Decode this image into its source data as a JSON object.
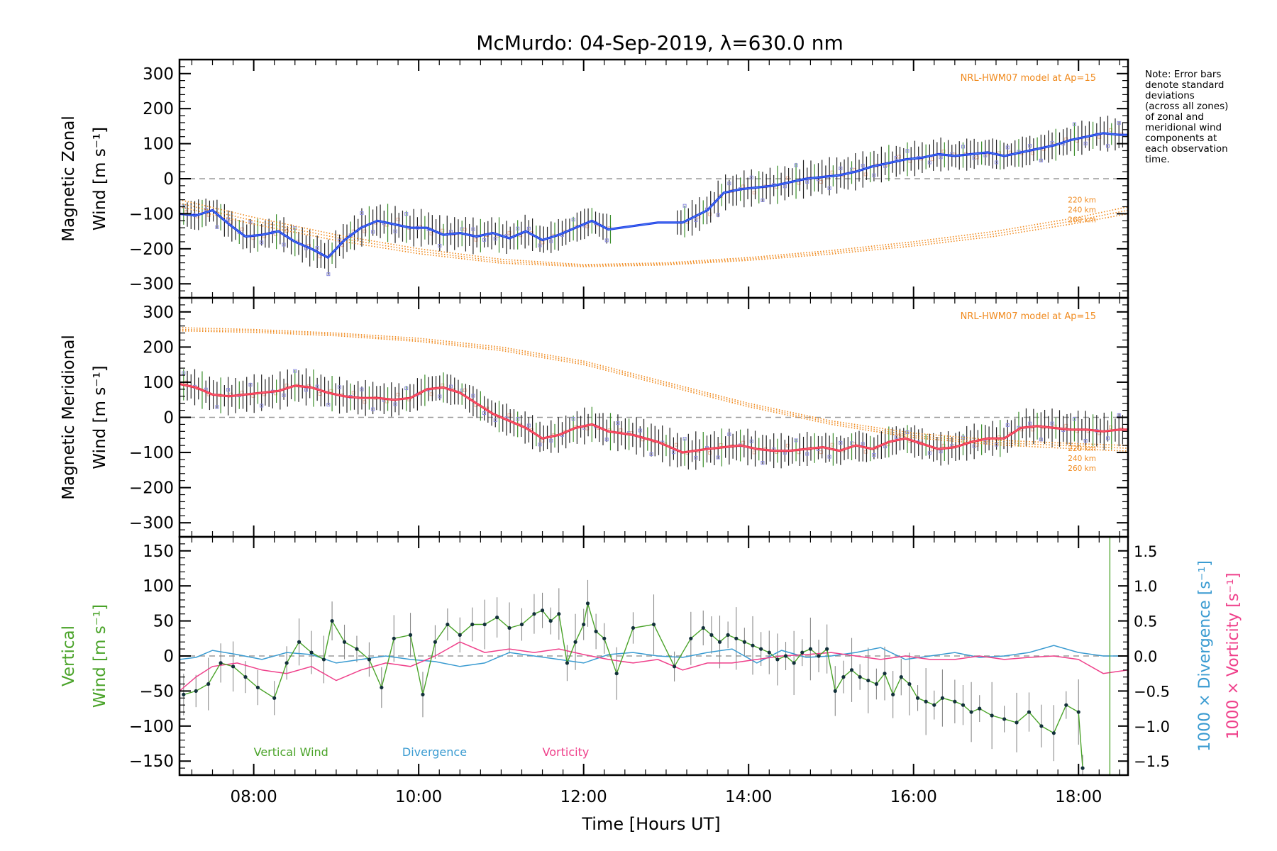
{
  "title": "McMurdo: 04-Sep-2019, λ=630.0 nm",
  "note_lines": [
    "Note: Error bars",
    "denote standard",
    "deviations",
    "(across all zones)",
    "of zonal and",
    "meridional wind",
    "components at",
    "each observation",
    "time."
  ],
  "x_axis": {
    "label": "Time [Hours UT]",
    "range": [
      7.1,
      18.6
    ],
    "ticks": [
      8,
      10,
      12,
      14,
      16,
      18
    ],
    "tick_labels": [
      "08:00",
      "10:00",
      "12:00",
      "14:00",
      "16:00",
      "18:00"
    ]
  },
  "colors": {
    "zonal": "#1f36e8",
    "meridional": "#f0304a",
    "model": "#f08a1e",
    "vertical": "#4aa329",
    "divergence": "#3a9bd1",
    "vorticity": "#ef3f8a",
    "dashed": "#9a9a9a",
    "zone_marker": "#8c8ce0",
    "error_bar": "#222222"
  },
  "chart_data": [
    {
      "type": "line",
      "panel": "zonal",
      "ylabel_line1": "Magnetic Zonal",
      "ylabel_line2": "Wind [m s⁻¹]",
      "ylim": [
        -340,
        340
      ],
      "yticks": [
        -300,
        -200,
        -100,
        0,
        100,
        200,
        300
      ],
      "model_label": "NRL-HWM07 model at Ap=15",
      "model_alt_labels": [
        "220 km",
        "240 km",
        "260 km"
      ],
      "series": [
        {
          "name": "Zonal wind",
          "x": [
            7.1,
            7.3,
            7.5,
            7.7,
            7.9,
            8.1,
            8.3,
            8.5,
            8.7,
            8.9,
            9.1,
            9.3,
            9.5,
            9.7,
            9.9,
            10.1,
            10.3,
            10.5,
            10.7,
            10.9,
            11.1,
            11.3,
            11.5,
            11.7,
            11.9,
            12.1,
            12.3,
            12.6,
            12.9,
            13.2,
            13.5,
            13.7,
            13.9,
            14.1,
            14.3,
            14.5,
            14.7,
            14.9,
            15.1,
            15.3,
            15.5,
            15.7,
            15.9,
            16.1,
            16.3,
            16.5,
            16.7,
            16.9,
            17.1,
            17.3,
            17.5,
            17.7,
            17.9,
            18.1,
            18.3,
            18.5,
            18.6
          ],
          "y": [
            -100,
            -105,
            -90,
            -130,
            -165,
            -160,
            -150,
            -180,
            -200,
            -225,
            -175,
            -140,
            -120,
            -130,
            -140,
            -140,
            -160,
            -155,
            -165,
            -155,
            -170,
            -150,
            -175,
            -160,
            -140,
            -120,
            -145,
            -135,
            -125,
            -125,
            -90,
            -40,
            -30,
            -25,
            -20,
            -10,
            0,
            5,
            10,
            20,
            35,
            45,
            55,
            60,
            70,
            65,
            70,
            75,
            65,
            75,
            85,
            95,
            110,
            120,
            130,
            125,
            125
          ]
        },
        {
          "name": "Model 220 km",
          "x": [
            7.1,
            8,
            9,
            10,
            11,
            12,
            13,
            14,
            15,
            16,
            17,
            18,
            18.6
          ],
          "y": [
            -60,
            -110,
            -160,
            -200,
            -230,
            -245,
            -240,
            -225,
            -205,
            -180,
            -150,
            -110,
            -80
          ]
        },
        {
          "name": "Model 240 km",
          "x": [
            7.1,
            8,
            9,
            10,
            11,
            12,
            13,
            14,
            15,
            16,
            17,
            18,
            18.6
          ],
          "y": [
            -70,
            -120,
            -168,
            -207,
            -236,
            -248,
            -243,
            -229,
            -210,
            -186,
            -157,
            -118,
            -90
          ]
        },
        {
          "name": "Model 260 km",
          "x": [
            7.1,
            8,
            9,
            10,
            11,
            12,
            13,
            14,
            15,
            16,
            17,
            18,
            18.6
          ],
          "y": [
            -80,
            -130,
            -176,
            -214,
            -241,
            -251,
            -246,
            -233,
            -215,
            -192,
            -164,
            -126,
            -100
          ]
        }
      ]
    },
    {
      "type": "line",
      "panel": "meridional",
      "ylabel_line1": "Magnetic Meridional",
      "ylabel_line2": "Wind [m s⁻¹]",
      "ylim": [
        -340,
        340
      ],
      "yticks": [
        -300,
        -200,
        -100,
        0,
        100,
        200,
        300
      ],
      "model_label": "NRL-HWM07 model at Ap=15",
      "model_alt_labels": [
        "220 km",
        "240 km",
        "260 km"
      ],
      "series": [
        {
          "name": "Meridional wind",
          "x": [
            7.1,
            7.3,
            7.5,
            7.7,
            7.9,
            8.1,
            8.3,
            8.5,
            8.7,
            8.9,
            9.1,
            9.3,
            9.5,
            9.7,
            9.9,
            10.1,
            10.3,
            10.5,
            10.7,
            10.9,
            11.1,
            11.3,
            11.5,
            11.7,
            11.9,
            12.1,
            12.3,
            12.6,
            12.9,
            13.2,
            13.5,
            13.7,
            13.9,
            14.1,
            14.3,
            14.5,
            14.7,
            14.9,
            15.1,
            15.3,
            15.5,
            15.7,
            15.9,
            16.1,
            16.3,
            16.5,
            16.7,
            16.9,
            17.1,
            17.3,
            17.5,
            17.7,
            17.9,
            18.1,
            18.3,
            18.5,
            18.6
          ],
          "y": [
            95,
            85,
            65,
            60,
            65,
            70,
            75,
            90,
            85,
            70,
            60,
            55,
            55,
            50,
            55,
            80,
            85,
            70,
            40,
            10,
            -10,
            -30,
            -60,
            -50,
            -30,
            -20,
            -40,
            -50,
            -70,
            -100,
            -90,
            -85,
            -80,
            -90,
            -95,
            -95,
            -90,
            -85,
            -95,
            -80,
            -90,
            -70,
            -60,
            -75,
            -90,
            -85,
            -70,
            -60,
            -60,
            -30,
            -25,
            -30,
            -35,
            -35,
            -40,
            -35,
            -35
          ]
        },
        {
          "name": "Model 220 km",
          "x": [
            7.1,
            8,
            9,
            10,
            11,
            12,
            13,
            14,
            15,
            16,
            17,
            18,
            18.6
          ],
          "y": [
            255,
            250,
            240,
            225,
            200,
            160,
            100,
            40,
            -10,
            -45,
            -65,
            -75,
            -80
          ]
        },
        {
          "name": "Model 240 km",
          "x": [
            7.1,
            8,
            9,
            10,
            11,
            12,
            13,
            14,
            15,
            16,
            17,
            18,
            18.6
          ],
          "y": [
            250,
            246,
            236,
            220,
            195,
            155,
            95,
            35,
            -15,
            -52,
            -72,
            -82,
            -88
          ]
        },
        {
          "name": "Model 260 km",
          "x": [
            7.1,
            8,
            9,
            10,
            11,
            12,
            13,
            14,
            15,
            16,
            17,
            18,
            18.6
          ],
          "y": [
            246,
            242,
            232,
            216,
            190,
            150,
            90,
            30,
            -20,
            -58,
            -78,
            -90,
            -96
          ]
        }
      ]
    },
    {
      "type": "line",
      "panel": "vertical",
      "ylabel_line1": "Vertical",
      "ylabel_line2": "Wind [m s⁻¹]",
      "right_label_divergence": "1000 × Divergence [s⁻¹]",
      "right_label_vorticity": "1000 × Vorticity [s⁻¹]",
      "ylim": [
        -170,
        170
      ],
      "yticks": [
        -150,
        -100,
        -50,
        0,
        50,
        100,
        150
      ],
      "y2lim": [
        -1.7,
        1.7
      ],
      "y2ticks": [
        -1.5,
        -1.0,
        -0.5,
        0.0,
        0.5,
        1.0,
        1.5
      ],
      "y2tick_labels": [
        "−1.5",
        "−1.0",
        "−0.5",
        "0.0",
        "0.5",
        "1.0",
        "1.5"
      ],
      "legend": [
        "Vertical Wind",
        "Divergence",
        "Vorticity"
      ],
      "series": [
        {
          "name": "Vertical Wind",
          "x": [
            7.15,
            7.3,
            7.45,
            7.6,
            7.75,
            7.9,
            8.05,
            8.25,
            8.4,
            8.55,
            8.7,
            8.85,
            8.95,
            9.1,
            9.25,
            9.4,
            9.55,
            9.7,
            9.9,
            10.05,
            10.2,
            10.35,
            10.5,
            10.65,
            10.8,
            10.95,
            11.1,
            11.25,
            11.4,
            11.5,
            11.6,
            11.7,
            11.8,
            11.9,
            12.0,
            12.05,
            12.15,
            12.25,
            12.4,
            12.6,
            12.85,
            13.1,
            13.3,
            13.45,
            13.55,
            13.65,
            13.75,
            13.85,
            13.95,
            14.05,
            14.15,
            14.25,
            14.35,
            14.45,
            14.55,
            14.65,
            14.75,
            14.85,
            14.95,
            15.05,
            15.15,
            15.25,
            15.35,
            15.45,
            15.55,
            15.65,
            15.75,
            15.85,
            15.95,
            16.05,
            16.15,
            16.25,
            16.35,
            16.5,
            16.6,
            16.7,
            16.8,
            16.95,
            17.1,
            17.25,
            17.4,
            17.55,
            17.7,
            17.85,
            18.0,
            18.05
          ],
          "y": [
            -55,
            -50,
            -40,
            -10,
            -15,
            -30,
            -45,
            -60,
            -10,
            20,
            5,
            -5,
            50,
            20,
            10,
            -5,
            -45,
            25,
            30,
            -55,
            20,
            45,
            30,
            45,
            45,
            55,
            40,
            45,
            60,
            65,
            50,
            60,
            -10,
            20,
            45,
            75,
            35,
            25,
            -25,
            40,
            45,
            -15,
            25,
            40,
            30,
            20,
            30,
            25,
            20,
            15,
            10,
            5,
            -5,
            0,
            -10,
            5,
            10,
            0,
            10,
            -50,
            -30,
            -20,
            -30,
            -35,
            -40,
            -25,
            -55,
            -30,
            -40,
            -60,
            -65,
            -70,
            -60,
            -65,
            -70,
            -80,
            -75,
            -85,
            -90,
            -95,
            -80,
            -100,
            -110,
            -70,
            -80,
            -160
          ]
        },
        {
          "name": "Divergence",
          "x": [
            7.1,
            7.3,
            7.5,
            7.8,
            8.1,
            8.4,
            8.7,
            9.0,
            9.3,
            9.6,
            9.9,
            10.2,
            10.5,
            10.8,
            11.1,
            11.4,
            11.7,
            12.0,
            12.3,
            12.6,
            12.9,
            13.2,
            13.5,
            13.8,
            14.1,
            14.4,
            14.7,
            15.0,
            15.3,
            15.6,
            15.9,
            16.2,
            16.5,
            16.8,
            17.1,
            17.4,
            17.7,
            18.0,
            18.3,
            18.6
          ],
          "y": [
            -0.05,
            -0.02,
            0.08,
            0.02,
            -0.05,
            0.05,
            0.02,
            -0.1,
            -0.05,
            0.0,
            -0.05,
            -0.08,
            -0.15,
            -0.1,
            0.05,
            0.0,
            -0.05,
            -0.1,
            0.02,
            0.05,
            0.0,
            -0.02,
            0.05,
            0.1,
            -0.1,
            0.08,
            -0.02,
            0.0,
            0.05,
            0.12,
            -0.05,
            0.0,
            0.05,
            -0.02,
            0.0,
            0.05,
            0.15,
            0.05,
            0.0,
            0.0
          ]
        },
        {
          "name": "Vorticity",
          "x": [
            7.1,
            7.3,
            7.5,
            7.8,
            8.1,
            8.4,
            8.7,
            9.0,
            9.3,
            9.6,
            9.9,
            10.2,
            10.5,
            10.8,
            11.1,
            11.4,
            11.7,
            12.0,
            12.3,
            12.6,
            12.9,
            13.2,
            13.5,
            13.8,
            14.1,
            14.4,
            14.7,
            15.0,
            15.3,
            15.6,
            15.9,
            16.2,
            16.5,
            16.8,
            17.1,
            17.4,
            17.7,
            18.0,
            18.3,
            18.6
          ],
          "y": [
            -0.5,
            -0.3,
            -0.15,
            -0.1,
            -0.2,
            -0.25,
            -0.15,
            -0.35,
            -0.2,
            -0.1,
            -0.15,
            0.0,
            0.2,
            0.05,
            0.1,
            0.05,
            0.1,
            0.02,
            -0.05,
            -0.1,
            -0.05,
            -0.2,
            -0.1,
            -0.1,
            -0.05,
            0.0,
            0.02,
            0.05,
            0.0,
            -0.05,
            0.0,
            -0.05,
            -0.05,
            0.0,
            -0.05,
            -0.02,
            0.0,
            -0.05,
            -0.25,
            -0.2
          ]
        }
      ]
    }
  ]
}
